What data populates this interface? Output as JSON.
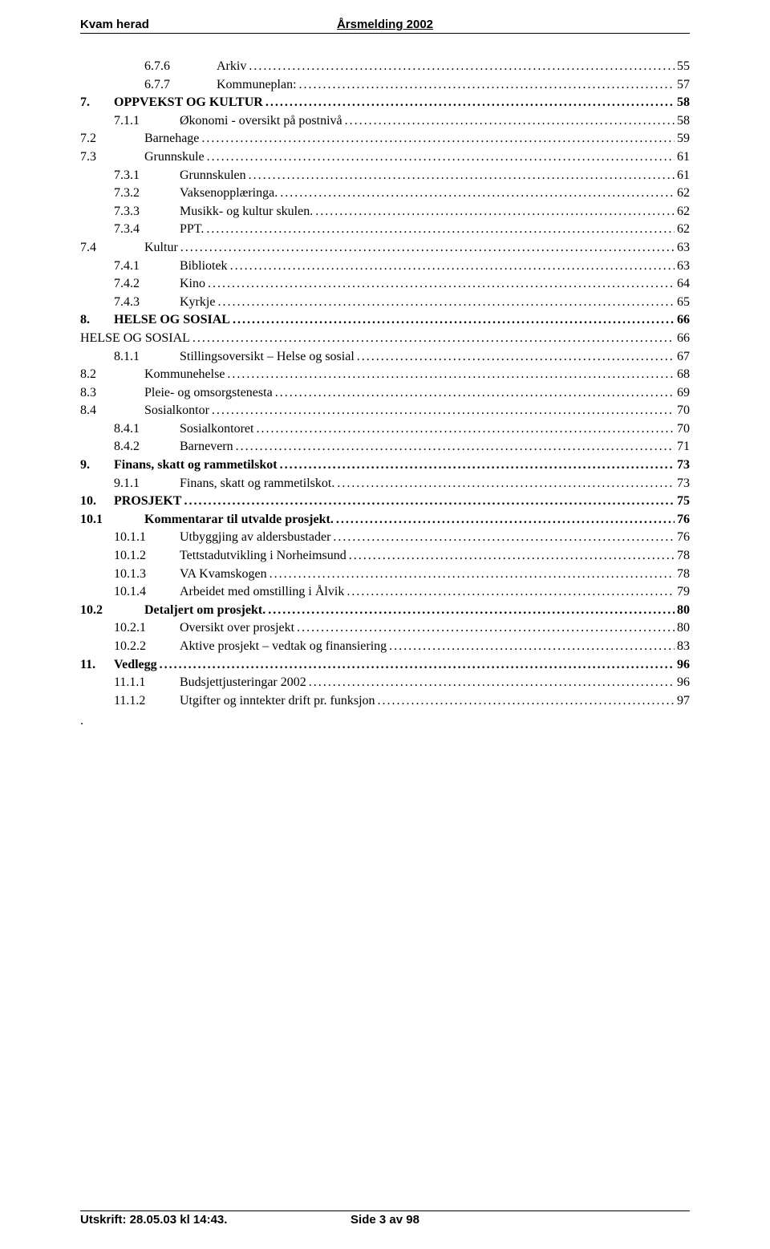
{
  "header": {
    "left": "Kvam herad",
    "center": "Årsmelding 2002"
  },
  "footer": {
    "left": "Utskrift: 28.05.03 kl 14:43.",
    "center": "Side 3 av 98"
  },
  "trailing_dot": ".",
  "toc": [
    {
      "lvl": 3,
      "num": "6.7.6",
      "title": "Arkiv",
      "page": "55"
    },
    {
      "lvl": 3,
      "num": "6.7.7",
      "title": "Kommuneplan:",
      "page": "57"
    },
    {
      "lvl": 0,
      "num": "7.",
      "title": "OPPVEKST OG KULTUR",
      "page": "58"
    },
    {
      "lvl": 2,
      "num": "7.1.1",
      "title": "Økonomi - oversikt på postnivå",
      "page": "58"
    },
    {
      "lvl": 1,
      "num": "7.2",
      "title": "Barnehage",
      "page": "59"
    },
    {
      "lvl": 1,
      "num": "7.3",
      "title": "Grunnskule",
      "page": "61"
    },
    {
      "lvl": 2,
      "num": "7.3.1",
      "title": "Grunnskulen",
      "page": "61"
    },
    {
      "lvl": 2,
      "num": "7.3.2",
      "title": "Vaksenopplæringa.",
      "page": "62"
    },
    {
      "lvl": 2,
      "num": "7.3.3",
      "title": "Musikk- og kultur skulen.",
      "page": "62"
    },
    {
      "lvl": 2,
      "num": "7.3.4",
      "title": "PPT.",
      "page": "62"
    },
    {
      "lvl": 1,
      "num": "7.4",
      "title": "Kultur",
      "page": "63"
    },
    {
      "lvl": 2,
      "num": "7.4.1",
      "title": "Bibliotek",
      "page": "63"
    },
    {
      "lvl": 2,
      "num": "7.4.2",
      "title": "Kino",
      "page": "64"
    },
    {
      "lvl": 2,
      "num": "7.4.3",
      "title": "Kyrkje",
      "page": "65"
    },
    {
      "lvl": 0,
      "num": "8.",
      "title": "HELSE OG SOSIAL",
      "page": "66"
    },
    {
      "lvl": "special",
      "num": "",
      "title": "HELSE OG SOSIAL",
      "page": "66"
    },
    {
      "lvl": 2,
      "num": "8.1.1",
      "title": "Stillingsoversikt – Helse og sosial",
      "page": "67"
    },
    {
      "lvl": 1,
      "num": "8.2",
      "title": "Kommunehelse",
      "page": "68"
    },
    {
      "lvl": 1,
      "num": "8.3",
      "title": "Pleie- og omsorgstenesta",
      "page": "69"
    },
    {
      "lvl": 1,
      "num": "8.4",
      "title": "Sosialkontor",
      "page": "70"
    },
    {
      "lvl": 2,
      "num": "8.4.1",
      "title": "Sosialkontoret",
      "page": "70"
    },
    {
      "lvl": 2,
      "num": "8.4.2",
      "title": "Barnevern",
      "page": "71"
    },
    {
      "lvl": 0,
      "num": "9.",
      "title": "Finans, skatt og rammetilskot",
      "page": "73"
    },
    {
      "lvl": 2,
      "num": "9.1.1",
      "title": "Finans, skatt og rammetilskot.",
      "page": "73"
    },
    {
      "lvl": 0,
      "num": "10.",
      "title": "PROSJEKT",
      "page": "75"
    },
    {
      "lvl": "1b",
      "num": "10.1",
      "title": "Kommentarar til utvalde prosjekt.",
      "page": "76"
    },
    {
      "lvl": 2,
      "num": "10.1.1",
      "title": "Utbyggjing av aldersbustader",
      "page": "76"
    },
    {
      "lvl": 2,
      "num": "10.1.2",
      "title": "Tettstadutvikling i Norheimsund",
      "page": "78"
    },
    {
      "lvl": 2,
      "num": "10.1.3",
      "title": "VA Kvamskogen",
      "page": "78"
    },
    {
      "lvl": 2,
      "num": "10.1.4",
      "title": "Arbeidet med omstilling i Ålvik",
      "page": "79"
    },
    {
      "lvl": "1b",
      "num": "10.2",
      "title": "Detaljert om prosjekt.",
      "page": "80"
    },
    {
      "lvl": 2,
      "num": "10.2.1",
      "title": "Oversikt over prosjekt",
      "page": "80"
    },
    {
      "lvl": 2,
      "num": "10.2.2",
      "title": "Aktive prosjekt – vedtak og finansiering",
      "page": "83"
    },
    {
      "lvl": 0,
      "num": "11.",
      "title": "Vedlegg",
      "page": "96"
    },
    {
      "lvl": 2,
      "num": "11.1.1",
      "title": "Budsjettjusteringar 2002",
      "page": "96"
    },
    {
      "lvl": 2,
      "num": "11.1.2",
      "title": "Utgifter og inntekter drift pr. funksjon",
      "page": "97"
    }
  ]
}
